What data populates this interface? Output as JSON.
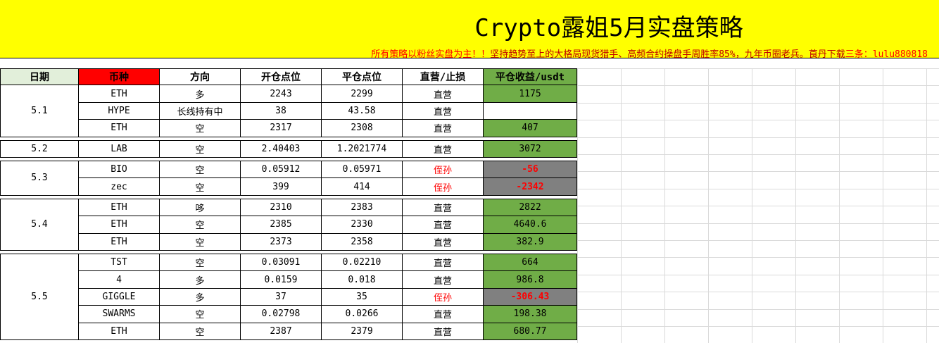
{
  "header": {
    "title": "Crypto露姐5月实盘策略",
    "subtitle": [
      "所有策略以粉丝实盘为主！！",
      "坚持趋势至上的大格局现货猎手、高频合约操盘手周胜率85%，九年币圈老兵。莨丹下载",
      "三条：lulu880818"
    ]
  },
  "table": {
    "columns": [
      "日期",
      "币种",
      "方向",
      "开仓点位",
      "平仓点位",
      "直营/止损",
      "平仓收益/usdt"
    ],
    "groups": [
      {
        "date": "5.1",
        "trades": [
          {
            "coin": "ETH",
            "direction": "多",
            "open": "2243",
            "close": "2299",
            "type": "直营",
            "profit": "1175"
          },
          {
            "coin": "HYPE",
            "direction": "长线持有中",
            "open": "38",
            "close": "43.58",
            "type": "直营"
          },
          {
            "coin": "ETH",
            "direction": "空",
            "open": "2317",
            "close": "2308",
            "type": "直营",
            "profit": "407"
          }
        ]
      },
      {
        "date": "5.2",
        "trades": [
          {
            "coin": "LAB",
            "direction": "空",
            "open": "2.40403",
            "close": "1.2021774",
            "type": "直营",
            "profit": "3072"
          }
        ]
      },
      {
        "date": "5.3",
        "trades": [
          {
            "coin": "BIO",
            "direction": "空",
            "open": "0.05912",
            "close": "0.05971",
            "type": "侄孙",
            "profit": "-56"
          },
          {
            "coin": "zec",
            "direction": "空",
            "open": "399",
            "close": "414",
            "type": "侄孙",
            "profit": "-2342"
          }
        ]
      },
      {
        "date": "5.4",
        "trades": [
          {
            "coin": "ETH",
            "direction": "哆",
            "open": "2310",
            "close": "2383",
            "type": "直营",
            "profit": "2822"
          },
          {
            "coin": "ETH",
            "direction": "空",
            "open": "2385",
            "close": "2330",
            "type": "直营",
            "profit": "4640.6"
          },
          {
            "coin": "ETH",
            "direction": "空",
            "open": "2373",
            "close": "2358",
            "type": "直营",
            "profit": "382.9"
          }
        ]
      },
      {
        "date": "5.5",
        "trades": [
          {
            "coin": "TST",
            "direction": "空",
            "open": "0.03091",
            "close": "0.02210",
            "type": "直营",
            "profit": "664"
          },
          {
            "coin": "4",
            "direction": "多",
            "open": "0.0159",
            "close": "0.018",
            "type": "直营",
            "profit": "986.8"
          },
          {
            "coin": "GIGGLE",
            "direction": "多",
            "open": "37",
            "close": "35",
            "type": "侄孙",
            "profit": "-306.43"
          },
          {
            "coin": "SWARMS",
            "direction": "空",
            "open": "0.02798",
            "close": "0.0266",
            "type": "直营",
            "profit": "198.38"
          },
          {
            "coin": "ETH",
            "direction": "空",
            "open": "2387",
            "close": "2379",
            "type": "直营",
            "profit": "680.77"
          }
        ]
      }
    ]
  }
}
